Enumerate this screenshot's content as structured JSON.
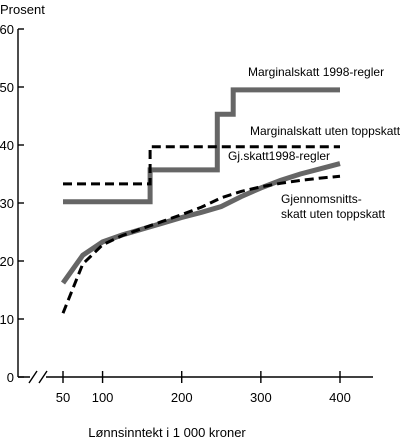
{
  "chart_data": {
    "type": "line",
    "ylabel": "Prosent",
    "xlabel": "Lønnsinntekt i 1 000 kroner",
    "ylim": [
      0,
      60
    ],
    "xlim": [
      50,
      400
    ],
    "y_ticks": [
      0,
      10,
      20,
      30,
      40,
      50,
      60
    ],
    "x_ticks": [
      50,
      100,
      200,
      300,
      400
    ],
    "axis_break": true,
    "colors": {
      "gray": "#666666",
      "black": "#000000"
    },
    "series": [
      {
        "name": "Marginalskatt 1998-regler",
        "style": "solid-thick-gray",
        "x": [
          50,
          160,
          160,
          245,
          245,
          265,
          265,
          400
        ],
        "y": [
          30.2,
          30.2,
          35.7,
          35.7,
          45.3,
          45.3,
          49.5,
          49.5
        ]
      },
      {
        "name": "Marginalskatt uten toppskatt",
        "style": "dashed-black",
        "x": [
          50,
          160,
          160,
          400
        ],
        "y": [
          33.3,
          33.3,
          39.7,
          39.7
        ]
      },
      {
        "name": "Gj.skatt1998-regler",
        "style": "solid-thick-gray",
        "x": [
          50,
          75,
          100,
          125,
          150,
          175,
          200,
          225,
          250,
          275,
          300,
          325,
          350,
          375,
          400
        ],
        "y": [
          16.2,
          21.0,
          23.3,
          24.5,
          25.5,
          26.5,
          27.5,
          28.4,
          29.4,
          31.1,
          32.6,
          33.9,
          35.0,
          35.9,
          36.8
        ]
      },
      {
        "name": "Gjennomsnitts-skatt uten toppskatt",
        "style": "dashed-black",
        "x": [
          50,
          75,
          100,
          125,
          150,
          175,
          200,
          225,
          250,
          275,
          300,
          325,
          350,
          375,
          400
        ],
        "y": [
          11.0,
          19.5,
          22.8,
          24.4,
          25.6,
          26.8,
          28.0,
          29.3,
          30.9,
          32.0,
          32.8,
          33.4,
          33.9,
          34.3,
          34.6
        ]
      }
    ],
    "annotations": [
      {
        "text": "Marginalskatt 1998-regler",
        "near": "series-1"
      },
      {
        "text": "Marginalskatt uten toppskatt",
        "near": "series-2"
      },
      {
        "text": "Gj.skatt1998-regler",
        "near": "series-3"
      },
      {
        "text": "Gjennomsnitts-",
        "near": "series-4"
      },
      {
        "text": "skatt uten toppskatt",
        "near": "series-4"
      }
    ]
  }
}
